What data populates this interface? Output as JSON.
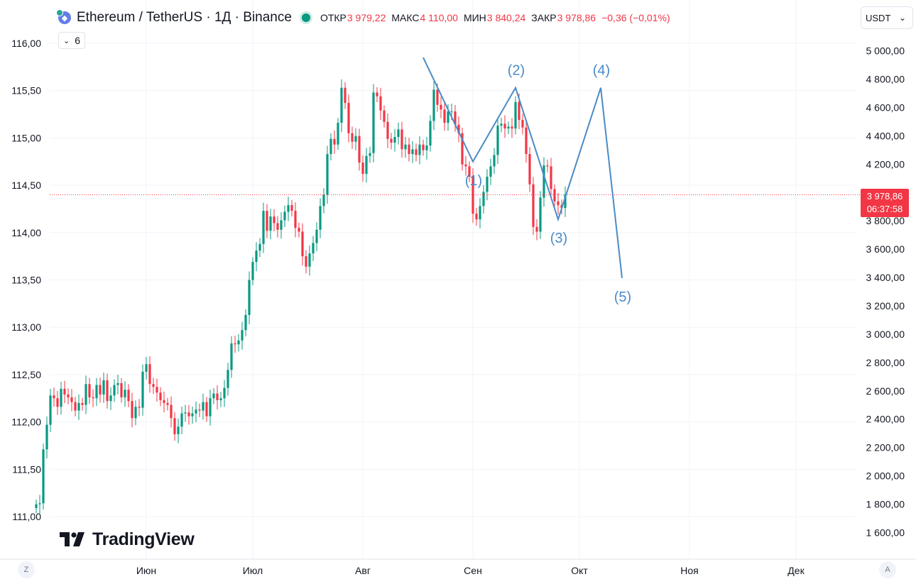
{
  "header": {
    "icon": "ethereum-icon",
    "title": "Ethereum / TetherUS · 1Д · Binance",
    "ohlc": [
      {
        "label": "ОТКР",
        "value": "3 979,22"
      },
      {
        "label": "МАКС",
        "value": "4 110,00"
      },
      {
        "label": "МИН",
        "value": "3 840,24"
      },
      {
        "label": "ЗАКР",
        "value": "3 978,86"
      }
    ],
    "change": "−0,36 (−0,01%)"
  },
  "indicators": {
    "count": "6",
    "icon": "chevron-down-icon"
  },
  "currency": {
    "label": "USDT",
    "icon": "chevron-down-icon"
  },
  "last_price": {
    "value": "3 978,86",
    "countdown": "06:37:58"
  },
  "logo": {
    "text": "TradingView"
  },
  "corner_buttons": {
    "left": "Z",
    "right": "A"
  },
  "colors": {
    "up": "#089981",
    "down": "#f23645",
    "pattern": "#4a8bc6",
    "grid": "#f0f3fa"
  },
  "chart_data": {
    "type": "candlestick",
    "left_axis": {
      "ticks": [
        "116,00",
        "115,50",
        "115,00",
        "114,50",
        "114,00",
        "113,50",
        "113,00",
        "112,50",
        "112,00",
        "111,50",
        "111,00"
      ],
      "range": [
        111.0,
        116.0
      ]
    },
    "right_axis": {
      "ticks": [
        "5 000,00",
        "4 800,00",
        "4 600,00",
        "4 400,00",
        "4 200,00",
        "3 800,00",
        "3 600,00",
        "3 400,00",
        "3 200,00",
        "3 000,00",
        "2 800,00",
        "2 600,00",
        "2 400,00",
        "2 200,00",
        "2 000,00",
        "1 800,00",
        "1 600,00"
      ],
      "range": [
        1600,
        5000
      ]
    },
    "x_axis": {
      "labels": [
        "Июн",
        "Июл",
        "Авг",
        "Сен",
        "Окт",
        "Ноя",
        "Дек"
      ]
    },
    "start_date": "2025-05-01",
    "closes": [
      111.13,
      111.14,
      111.71,
      111.97,
      112.28,
      112.25,
      112.16,
      112.35,
      112.29,
      112.26,
      112.21,
      112.12,
      112.2,
      112.18,
      112.4,
      112.26,
      112.25,
      112.39,
      112.29,
      112.44,
      112.22,
      112.28,
      112.39,
      112.41,
      112.26,
      112.34,
      112.22,
      112.04,
      112.16,
      112.15,
      112.53,
      112.61,
      112.4,
      112.37,
      112.31,
      112.23,
      112.2,
      112.18,
      112.04,
      111.87,
      111.95,
      112.09,
      112.1,
      112.06,
      112.09,
      112.13,
      112.12,
      112.21,
      112.06,
      112.25,
      112.3,
      112.23,
      112.25,
      112.36,
      112.55,
      112.83,
      112.82,
      112.86,
      112.97,
      113.13,
      113.5,
      113.69,
      113.81,
      113.88,
      114.23,
      114.02,
      114.17,
      114.1,
      114.03,
      114.13,
      114.22,
      114.29,
      114.23,
      114.05,
      114.01,
      113.75,
      113.64,
      113.78,
      113.89,
      114.03,
      114.28,
      114.4,
      114.83,
      114.99,
      114.93,
      115.16,
      115.53,
      115.37,
      115.05,
      114.96,
      115.02,
      114.74,
      114.62,
      114.81,
      114.84,
      115.48,
      115.44,
      115.29,
      115.17,
      114.99,
      114.95,
      115.01,
      115.09,
      114.88,
      114.93,
      114.83,
      114.88,
      114.82,
      114.93,
      114.87,
      114.92,
      115.18,
      115.51,
      115.35,
      115.3,
      115.16,
      115.28,
      115.28,
      115.14,
      115.05,
      114.72,
      114.7,
      114.59,
      114.2,
      114.14,
      114.28,
      114.43,
      114.59,
      114.7,
      114.82,
      115.13,
      115.15,
      115.1,
      115.12,
      115.1,
      115.38,
      115.19,
      115.11,
      114.83,
      114.51,
      114.06,
      114.01,
      114.37,
      114.71,
      114.7,
      114.46,
      114.33,
      114.29,
      114.26,
      114.4
    ],
    "pattern": {
      "points": [
        {
          "date": "2025-08-18",
          "value": 115.85,
          "label": ""
        },
        {
          "date": "2025-09-01",
          "value": 114.75,
          "label": "(1)"
        },
        {
          "date": "2025-09-13",
          "value": 115.53,
          "label": "(2)"
        },
        {
          "date": "2025-09-25",
          "value": 114.14,
          "label": "(3)"
        },
        {
          "date": "2025-10-07",
          "value": 115.53,
          "label": "(4)"
        },
        {
          "date": "2025-10-13",
          "value": 113.52,
          "label": "(5)"
        }
      ]
    }
  }
}
